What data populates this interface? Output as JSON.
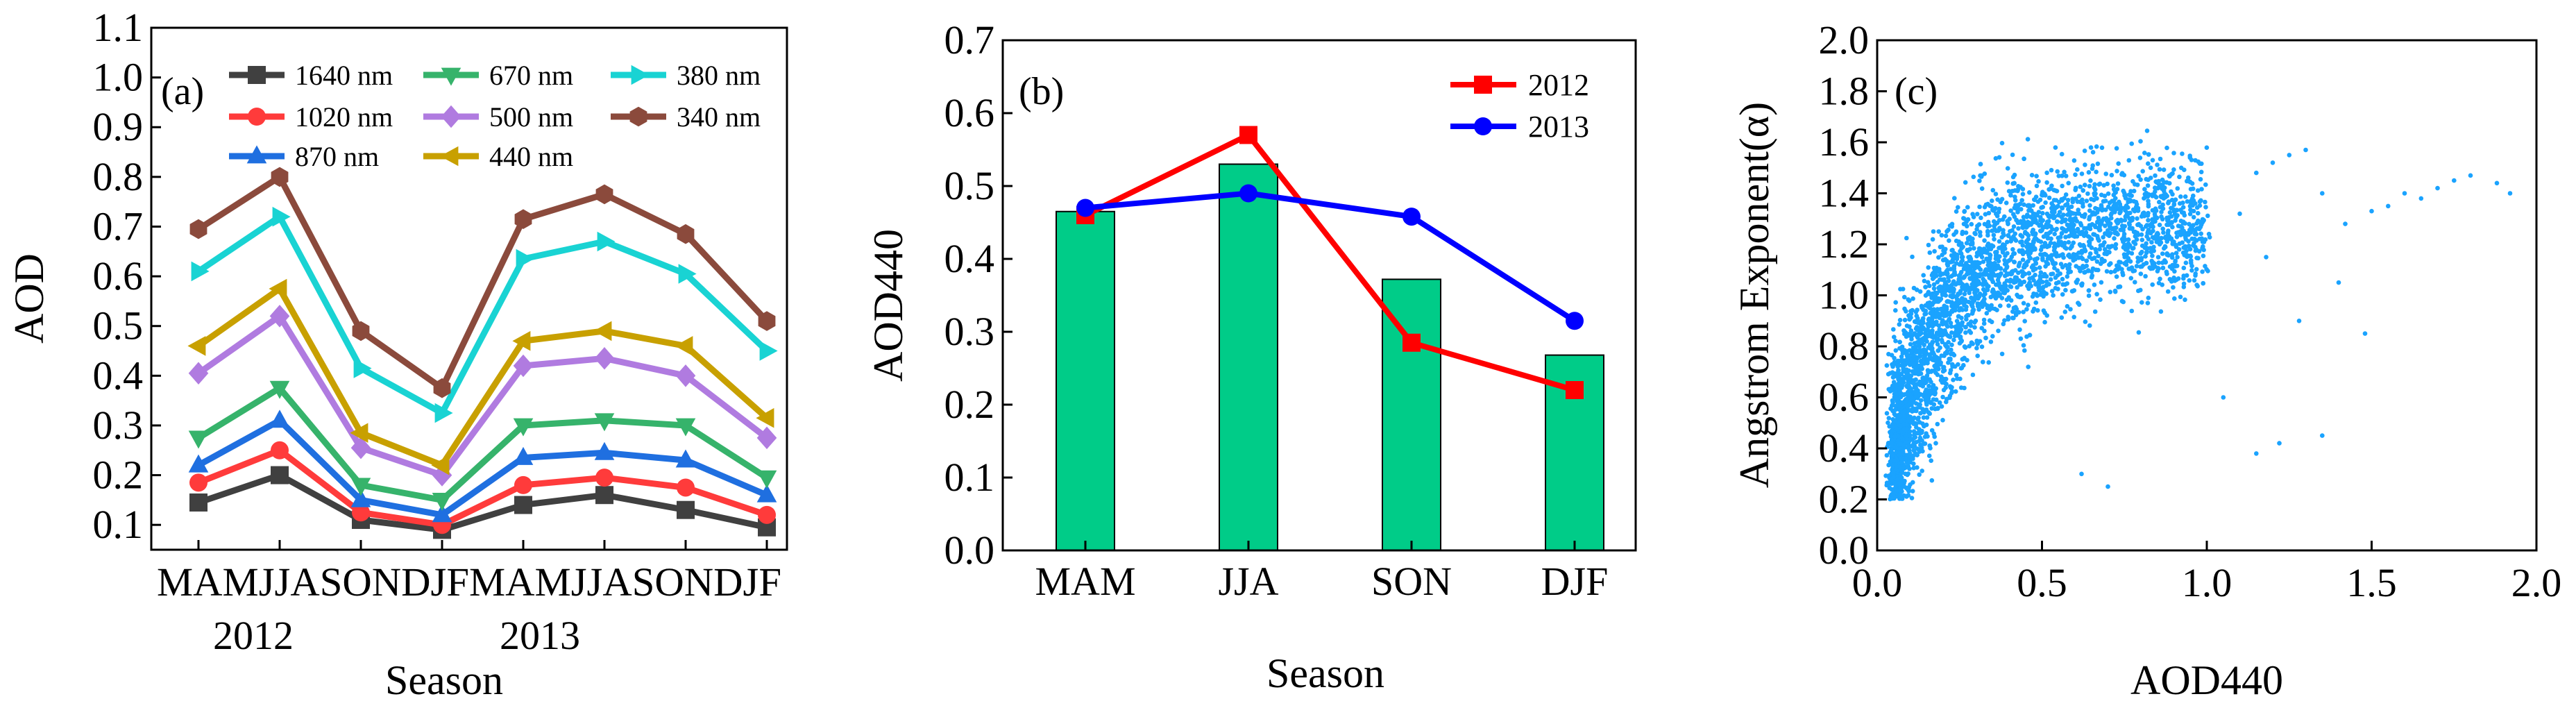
{
  "chart_data": [
    {
      "type": "line",
      "panel_label": "(a)",
      "xlabel": "Season",
      "ylabel": "AOD",
      "ylim": [
        0.05,
        1.1
      ],
      "yticks": [
        0.1,
        0.2,
        0.3,
        0.4,
        0.5,
        0.6,
        0.7,
        0.8,
        0.9,
        1.0,
        1.1
      ],
      "ytick_labels": [
        "0.1",
        "0.2",
        "0.3",
        "0.4",
        "0.5",
        "0.6",
        "0.7",
        "0.8",
        "0.9",
        "1.0",
        "1.1"
      ],
      "categories": [
        "MAM",
        "JJA",
        "SON",
        "DJF",
        "MAM",
        "JJA",
        "SON",
        "DJF"
      ],
      "tick_text_line": "MAMJJASONDJFMAMJJASONDJF",
      "year_labels": [
        "2012",
        "2013"
      ],
      "legend_position": "top",
      "series": [
        {
          "name": "1640 nm",
          "color": "#404040",
          "marker": "square",
          "values": [
            0.145,
            0.2,
            0.11,
            0.09,
            0.14,
            0.16,
            0.13,
            0.095
          ]
        },
        {
          "name": "1020 nm",
          "color": "#ff3b3b",
          "marker": "circle",
          "values": [
            0.185,
            0.25,
            0.125,
            0.1,
            0.18,
            0.195,
            0.175,
            0.12
          ]
        },
        {
          "name": "870 nm",
          "color": "#1f6fe0",
          "marker": "triangle-up",
          "values": [
            0.22,
            0.31,
            0.15,
            0.12,
            0.235,
            0.245,
            0.23,
            0.16
          ]
        },
        {
          "name": "670 nm",
          "color": "#36b36b",
          "marker": "triangle-down",
          "values": [
            0.275,
            0.375,
            0.18,
            0.15,
            0.3,
            0.31,
            0.3,
            0.195
          ]
        },
        {
          "name": "500 nm",
          "color": "#b07be0",
          "marker": "diamond",
          "values": [
            0.405,
            0.52,
            0.255,
            0.2,
            0.42,
            0.435,
            0.4,
            0.275
          ]
        },
        {
          "name": "440 nm",
          "color": "#c8a000",
          "marker": "triangle-left",
          "values": [
            0.46,
            0.575,
            0.285,
            0.22,
            0.47,
            0.49,
            0.46,
            0.315
          ]
        },
        {
          "name": "380 nm",
          "color": "#19d3d3",
          "marker": "triangle-right",
          "values": [
            0.61,
            0.72,
            0.415,
            0.325,
            0.635,
            0.67,
            0.605,
            0.45
          ]
        },
        {
          "name": "340 nm",
          "color": "#8b4a3c",
          "marker": "hexagon",
          "values": [
            0.695,
            0.8,
            0.49,
            0.375,
            0.715,
            0.765,
            0.685,
            0.51
          ]
        }
      ]
    },
    {
      "type": "bar+line",
      "panel_label": "(b)",
      "xlabel": "Season",
      "ylabel": "AOD440",
      "ylim": [
        0.0,
        0.7
      ],
      "yticks": [
        0.0,
        0.1,
        0.2,
        0.3,
        0.4,
        0.5,
        0.6,
        0.7
      ],
      "ytick_labels": [
        "0.0",
        "0.1",
        "0.2",
        "0.3",
        "0.4",
        "0.5",
        "0.6",
        "0.7"
      ],
      "categories": [
        "MAM",
        "JJA",
        "SON",
        "DJF"
      ],
      "bar_color": "#00cc88",
      "bar_values": [
        0.465,
        0.53,
        0.372,
        0.268
      ],
      "legend_position": "top-right",
      "series": [
        {
          "name": "2012",
          "color": "#ff0000",
          "marker": "square",
          "values": [
            0.46,
            0.57,
            0.285,
            0.22
          ]
        },
        {
          "name": "2013",
          "color": "#0000ff",
          "marker": "circle",
          "values": [
            0.47,
            0.49,
            0.458,
            0.315
          ]
        }
      ]
    },
    {
      "type": "scatter",
      "panel_label": "(c)",
      "xlabel": "AOD440",
      "ylabel": "Angstrom Exponent(α)",
      "xlim": [
        0.0,
        2.0
      ],
      "ylim": [
        0.0,
        2.0
      ],
      "xticks": [
        0.0,
        0.5,
        1.0,
        1.5,
        2.0
      ],
      "xtick_labels": [
        "0.0",
        "0.5",
        "1.0",
        "1.5",
        "2.0"
      ],
      "yticks": [
        0.0,
        0.2,
        0.4,
        0.6,
        0.8,
        1.0,
        1.2,
        1.4,
        1.6,
        1.8,
        2.0
      ],
      "ytick_labels": [
        "0.0",
        "0.2",
        "0.4",
        "0.6",
        "0.8",
        "1.0",
        "1.2",
        "1.4",
        "1.6",
        "1.8",
        "2.0"
      ],
      "point_color": "#1aa3ff",
      "n_points": 3400,
      "x_range_dense": [
        0.05,
        1.0
      ],
      "y_range": [
        0.2,
        1.7
      ],
      "outliers": [
        [
          1.1,
          1.32
        ],
        [
          1.15,
          1.48
        ],
        [
          1.2,
          1.52
        ],
        [
          1.25,
          1.55
        ],
        [
          1.3,
          1.57
        ],
        [
          1.35,
          1.4
        ],
        [
          1.42,
          1.28
        ],
        [
          1.5,
          1.33
        ],
        [
          1.55,
          1.35
        ],
        [
          1.6,
          1.4
        ],
        [
          1.65,
          1.38
        ],
        [
          1.7,
          1.42
        ],
        [
          1.75,
          1.45
        ],
        [
          1.8,
          1.47
        ],
        [
          1.88,
          1.44
        ],
        [
          1.92,
          1.4
        ],
        [
          1.15,
          0.38
        ],
        [
          1.22,
          0.42
        ],
        [
          1.35,
          0.45
        ],
        [
          1.05,
          0.6
        ],
        [
          1.28,
          0.9
        ],
        [
          1.18,
          1.15
        ],
        [
          1.4,
          1.05
        ],
        [
          1.48,
          0.85
        ],
        [
          0.7,
          0.25
        ],
        [
          0.62,
          0.3
        ]
      ]
    }
  ]
}
